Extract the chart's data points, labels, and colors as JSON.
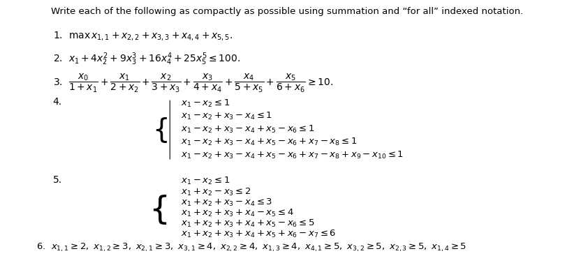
{
  "title": "Write each of the following as compactly as possible using summation and “for all” indexed notation.",
  "line1": "1.  $\\max\\, x_{1,1} + x_{2,2} + x_{3,3} + x_{4,4} + x_{5,5}.$",
  "line2": "2.  $x_1 + 4x_2^2 + 9x_3^3 + 16x_4^4 + 25x_5^5 \\leq 100.$",
  "line3": "3.  $\\dfrac{x_0}{1+x_1} + \\dfrac{x_1}{2+x_2} + \\dfrac{x_2}{3+x_3} + \\dfrac{x_3}{4+x_4} + \\dfrac{x_4}{5+x_5} + \\dfrac{x_5}{6+x_6} \\geq 10.$",
  "line4_label": "4.",
  "line4_eqs": [
    "$x_1 - x_2 \\leq 1$",
    "$x_1 - x_2 + x_3 - x_4 \\leq 1$",
    "$x_1 - x_2 + x_3 - x_4 + x_5 - x_6 \\leq 1$",
    "$x_1 - x_2 + x_3 - x_4 + x_5 - x_6 + x_7 - x_8 \\leq 1$",
    "$x_1 - x_2 + x_3 - x_4 + x_5 - x_6 + x_7 - x_8 + x_9 - x_{10} \\leq 1$"
  ],
  "line5_label": "5.",
  "line5_eqs": [
    "$x_1 - x_2 \\leq 1$",
    "$x_1 + x_2 - x_3 \\leq 2$",
    "$x_1 + x_2 + x_3 - x_4 \\leq 3$",
    "$x_1 + x_2 + x_3 + x_4 - x_5 \\leq 4$",
    "$x_1 + x_2 + x_3 + x_4 + x_5 - x_6 \\leq 5$",
    "$x_1 + x_2 + x_3 + x_4 + x_5 + x_6 - x_7 \\leq 6$"
  ],
  "line6": "6.  $x_{1,1} \\geq 2,\\ x_{1,2} \\geq 3,\\ x_{2,1} \\geq 3,\\ x_{3,1} \\geq 4,\\ x_{2,2} \\geq 4,\\ x_{1,3} \\geq 4,\\ x_{4,1} \\geq 5,\\ x_{3,2} \\geq 5,\\ x_{2,3} \\geq 5,\\ x_{1,4} \\geq 5$",
  "bg_color": "#ffffff",
  "text_color": "#000000",
  "fontsize_title": 9.5,
  "fontsize_body": 10.0
}
